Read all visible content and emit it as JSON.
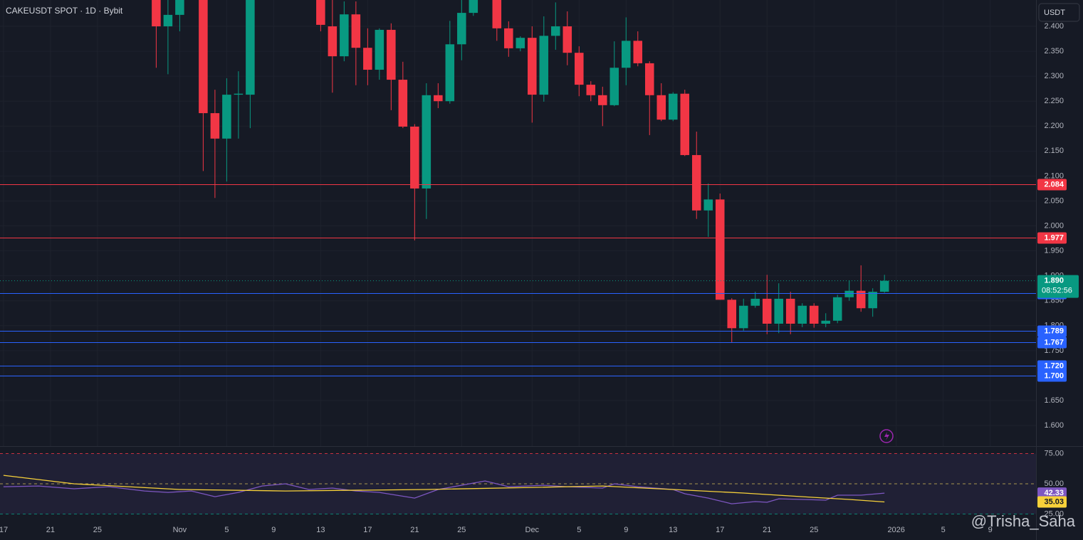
{
  "header": {
    "symbol": "CAKEUSDT SPOT · 1D · Bybit",
    "currency": "USDT"
  },
  "watermark": "@Trisha_Saha",
  "chart_data": [
    {
      "type": "candlestick",
      "up_color": "#089981",
      "down_color": "#f23645",
      "xlim": [
        -0.3,
        87.9
      ],
      "xticks": [
        {
          "value": 0,
          "label": "17"
        },
        {
          "value": 4,
          "label": "21"
        },
        {
          "value": 8,
          "label": "25"
        },
        {
          "value": 15,
          "label": "Nov"
        },
        {
          "value": 19,
          "label": "5"
        },
        {
          "value": 23,
          "label": "9"
        },
        {
          "value": 27,
          "label": "13"
        },
        {
          "value": 31,
          "label": "17"
        },
        {
          "value": 35,
          "label": "21"
        },
        {
          "value": 39,
          "label": "25"
        },
        {
          "value": 45,
          "label": "Dec"
        },
        {
          "value": 49,
          "label": "5"
        },
        {
          "value": 53,
          "label": "9"
        },
        {
          "value": 57,
          "label": "13"
        },
        {
          "value": 61,
          "label": "17"
        },
        {
          "value": 65,
          "label": "21"
        },
        {
          "value": 69,
          "label": "25"
        },
        {
          "value": 76,
          "label": "2026"
        },
        {
          "value": 80,
          "label": "5"
        },
        {
          "value": 84,
          "label": "9"
        }
      ],
      "ylim": [
        1.5587,
        2.4528
      ],
      "yticks": [
        {
          "value": 2.4,
          "label": "2.400"
        },
        {
          "value": 2.35,
          "label": "2.350"
        },
        {
          "value": 2.3,
          "label": "2.300"
        },
        {
          "value": 2.25,
          "label": "2.250"
        },
        {
          "value": 2.2,
          "label": "2.200"
        },
        {
          "value": 2.15,
          "label": "2.150"
        },
        {
          "value": 2.1,
          "label": "2.100"
        },
        {
          "value": 2.05,
          "label": "2.050"
        },
        {
          "value": 2.0,
          "label": "2.000"
        },
        {
          "value": 1.95,
          "label": "1.950"
        },
        {
          "value": 1.9,
          "label": "1.900"
        },
        {
          "value": 1.85,
          "label": "1.850"
        },
        {
          "value": 1.8,
          "label": "1.800"
        },
        {
          "value": 1.75,
          "label": "1.750"
        },
        {
          "value": 1.7,
          "label": "1.700"
        },
        {
          "value": 1.65,
          "label": "1.650"
        },
        {
          "value": 1.6,
          "label": "1.600"
        }
      ],
      "x": [
        13,
        14,
        15,
        17,
        18,
        19,
        20,
        21,
        27,
        28,
        29,
        30,
        31,
        32,
        33,
        34,
        35,
        36,
        37,
        38,
        39,
        40,
        42,
        43,
        44,
        45,
        46,
        47,
        48,
        49,
        50,
        51,
        52,
        53,
        54,
        55,
        56,
        57,
        58,
        59,
        60,
        61,
        62,
        63,
        64,
        65,
        66,
        67,
        68,
        69,
        70,
        71,
        72,
        73,
        74,
        75
      ],
      "open": [
        2.47,
        2.4,
        2.423,
        2.48,
        2.226,
        2.175,
        2.263,
        2.263,
        2.47,
        2.4,
        2.34,
        2.424,
        2.357,
        2.313,
        2.393,
        2.293,
        2.199,
        2.075,
        2.262,
        2.25,
        2.364,
        2.427,
        2.47,
        2.396,
        2.356,
        2.377,
        2.263,
        2.381,
        2.4,
        2.347,
        2.283,
        2.262,
        2.242,
        2.317,
        2.371,
        2.326,
        2.262,
        2.213,
        2.265,
        2.142,
        2.031,
        2.053,
        1.852,
        1.795,
        1.84,
        1.854,
        1.804,
        1.854,
        1.804,
        1.84,
        1.804,
        1.81,
        1.857,
        1.87,
        1.835,
        1.868
      ],
      "high": [
        2.5,
        2.47,
        2.5,
        2.5,
        2.273,
        2.296,
        2.31,
        2.5,
        2.5,
        2.46,
        2.45,
        2.45,
        2.396,
        2.396,
        2.406,
        2.329,
        2.204,
        2.286,
        2.286,
        2.411,
        2.46,
        2.5,
        2.5,
        2.41,
        2.38,
        2.4,
        2.42,
        2.448,
        2.43,
        2.36,
        2.29,
        2.279,
        2.37,
        2.418,
        2.39,
        2.33,
        2.286,
        2.268,
        2.273,
        2.189,
        2.085,
        2.065,
        1.855,
        1.854,
        1.868,
        1.902,
        1.885,
        1.868,
        1.845,
        1.845,
        1.825,
        1.862,
        1.891,
        1.921,
        1.875,
        1.902
      ],
      "low": [
        2.317,
        2.304,
        2.39,
        2.11,
        2.056,
        2.089,
        2.175,
        2.196,
        2.39,
        2.267,
        2.33,
        2.282,
        2.282,
        2.293,
        2.232,
        2.196,
        1.971,
        2.014,
        2.236,
        2.245,
        2.332,
        2.421,
        2.371,
        2.339,
        2.35,
        2.207,
        2.249,
        2.353,
        2.322,
        2.26,
        2.25,
        2.2,
        2.24,
        2.282,
        2.32,
        2.182,
        2.21,
        2.21,
        2.14,
        2.014,
        1.978,
        1.852,
        1.767,
        1.79,
        1.836,
        1.783,
        1.785,
        1.783,
        1.797,
        1.796,
        1.797,
        1.805,
        1.85,
        1.828,
        1.818,
        1.866
      ],
      "close": [
        2.4,
        2.423,
        2.47,
        2.226,
        2.175,
        2.263,
        2.265,
        2.47,
        2.403,
        2.34,
        2.424,
        2.357,
        2.313,
        2.393,
        2.293,
        2.199,
        2.075,
        2.262,
        2.25,
        2.364,
        2.427,
        2.47,
        2.396,
        2.356,
        2.377,
        2.263,
        2.381,
        2.4,
        2.347,
        2.283,
        2.262,
        2.242,
        2.317,
        2.371,
        2.326,
        2.262,
        2.213,
        2.265,
        2.142,
        2.031,
        2.053,
        1.852,
        1.795,
        1.84,
        1.854,
        1.804,
        1.854,
        1.804,
        1.84,
        1.804,
        1.81,
        1.857,
        1.87,
        1.835,
        1.868,
        1.89
      ],
      "levels": [
        {
          "value": 2.084,
          "color": "#f23645"
        },
        {
          "value": 1.977,
          "color": "#f23645"
        },
        {
          "value": 1.866,
          "color": "#2962ff"
        },
        {
          "value": 1.789,
          "color": "#2962ff"
        },
        {
          "value": 1.767,
          "color": "#2962ff"
        },
        {
          "value": 1.72,
          "label": "1.720",
          "color": "#2962ff"
        },
        {
          "value": 1.7,
          "label": "1.700",
          "color": "#2962ff"
        }
      ],
      "last_price": {
        "value": 1.89,
        "label": "1.890"
      },
      "countdown": "08:52:56"
    },
    {
      "type": "line",
      "ylim": [
        15.9,
        81.2
      ],
      "yticks": [
        {
          "value": 75,
          "label": "75.00"
        },
        {
          "value": 50,
          "label": "50.00"
        },
        {
          "value": 25,
          "label": "25.00"
        }
      ],
      "series": [
        {
          "color": "#7e57c2",
          "x": [
            0,
            3,
            6,
            9,
            12,
            14,
            16,
            18,
            20,
            22,
            24,
            26,
            28,
            30,
            32,
            35,
            37,
            41,
            43,
            46,
            48,
            51,
            52,
            54,
            57,
            58,
            60,
            62,
            64,
            65,
            66,
            68,
            70,
            71,
            73,
            75
          ],
          "values": [
            47.6,
            48.2,
            45.9,
            47.6,
            44.1,
            42.9,
            44.1,
            39.4,
            42.9,
            48.2,
            50,
            45.3,
            46.5,
            44.1,
            42.9,
            38.2,
            45.3,
            52.4,
            47.6,
            48.8,
            47.6,
            46.5,
            50,
            47.6,
            45.3,
            41.8,
            38.2,
            33.5,
            35.3,
            34.7,
            37.6,
            37.1,
            36.5,
            40.6,
            40.6,
            42.33
          ]
        },
        {
          "color": "#f7d13a",
          "x": [
            0,
            6,
            15,
            24,
            36,
            45,
            51,
            57,
            63,
            69,
            72,
            75
          ],
          "values": [
            57,
            50,
            45.3,
            44.1,
            45.3,
            47,
            48.2,
            45.3,
            42.4,
            38.8,
            37.1,
            35.03
          ]
        }
      ]
    }
  ]
}
